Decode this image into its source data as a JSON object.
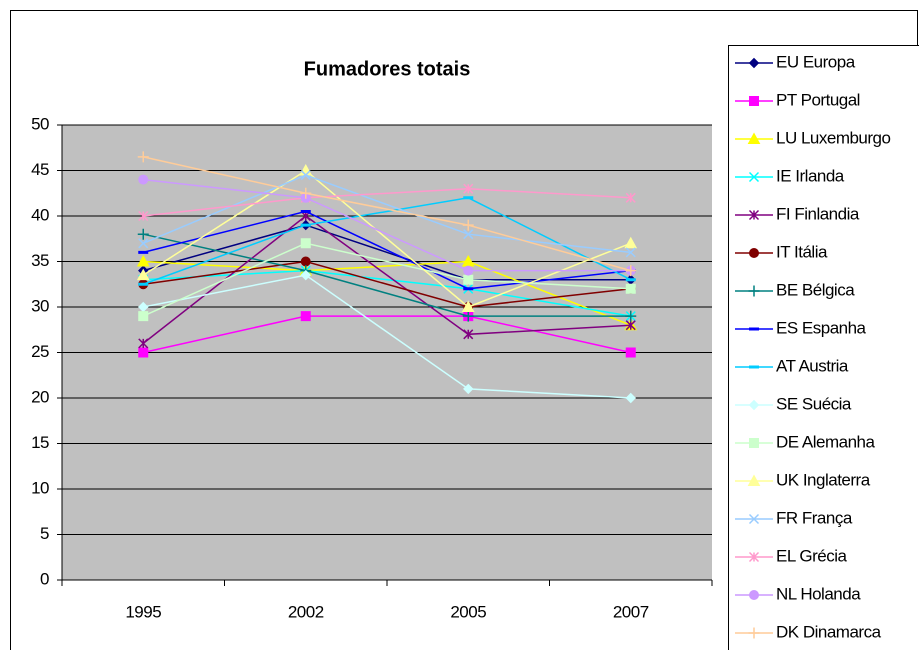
{
  "chart_data": {
    "type": "line",
    "title": "Fumadores totais",
    "categories": [
      "1995",
      "2002",
      "2005",
      "2007"
    ],
    "ylim": [
      0,
      50
    ],
    "yticks": [
      0,
      5,
      10,
      15,
      20,
      25,
      30,
      35,
      40,
      45,
      50
    ],
    "grid": true,
    "legend": "right",
    "series": [
      {
        "name": "EU Europa",
        "color": "#000080",
        "marker": "diamond",
        "values": [
          34,
          39,
          33,
          33
        ]
      },
      {
        "name": "PT Portugal",
        "color": "#ff00ff",
        "marker": "square",
        "values": [
          25,
          29,
          29,
          25
        ]
      },
      {
        "name": "LU Luxemburgo",
        "color": "#ffff00",
        "marker": "triangle",
        "values": [
          35,
          34,
          35,
          28
        ]
      },
      {
        "name": "IE Irlanda",
        "color": "#00ffff",
        "marker": "x",
        "values": [
          33,
          34,
          32,
          29
        ]
      },
      {
        "name": "FI Finlandia",
        "color": "#800080",
        "marker": "star",
        "values": [
          26,
          40,
          27,
          28
        ]
      },
      {
        "name": "IT Itália",
        "color": "#800000",
        "marker": "circle",
        "values": [
          32.5,
          35,
          30,
          32
        ]
      },
      {
        "name": "BE Bélgica",
        "color": "#008080",
        "marker": "plus",
        "values": [
          38,
          34,
          29,
          29
        ]
      },
      {
        "name": "ES Espanha",
        "color": "#0000ff",
        "marker": "dash",
        "values": [
          36,
          40.5,
          32,
          34
        ]
      },
      {
        "name": "AT Austria",
        "color": "#00ccff",
        "marker": "dash",
        "values": [
          32.5,
          39,
          42,
          33
        ]
      },
      {
        "name": "SE Suécia",
        "color": "#ccffff",
        "marker": "diamond",
        "values": [
          30,
          33.5,
          21,
          20
        ]
      },
      {
        "name": "DE Alemanha",
        "color": "#ccffcc",
        "marker": "square",
        "values": [
          29,
          37,
          33,
          32
        ]
      },
      {
        "name": "UK Inglaterra",
        "color": "#ffff99",
        "marker": "triangle",
        "values": [
          33.5,
          45,
          30,
          37
        ]
      },
      {
        "name": "FR França",
        "color": "#99ccff",
        "marker": "x",
        "values": [
          37,
          44.5,
          38,
          36
        ]
      },
      {
        "name": "EL Grécia",
        "color": "#ff99cc",
        "marker": "star",
        "values": [
          40,
          42,
          43,
          42
        ]
      },
      {
        "name": "NL Holanda",
        "color": "#cc99ff",
        "marker": "circle",
        "values": [
          44,
          42,
          34,
          34
        ]
      },
      {
        "name": "DK Dinamarca",
        "color": "#ffcc99",
        "marker": "plus",
        "values": [
          46.5,
          42.5,
          39,
          34
        ]
      }
    ]
  }
}
